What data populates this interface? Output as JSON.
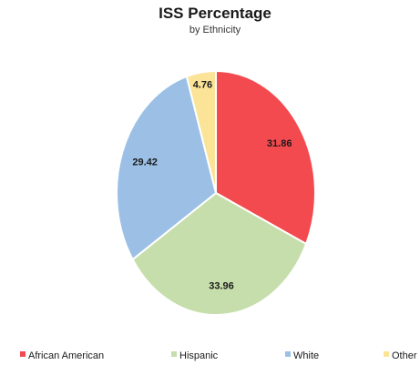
{
  "chart_data": {
    "type": "pie",
    "title": "ISS Percentage",
    "subtitle": "by Ethnicity",
    "categories": [
      "African American",
      "Hispanic",
      "White",
      "Other"
    ],
    "values": [
      31.86,
      33.96,
      29.42,
      4.76
    ],
    "data_labels": [
      "31.86",
      "33.96",
      "29.42",
      "4.76"
    ],
    "colors": [
      "#f24a4f",
      "#c6deab",
      "#9cc0e5",
      "#fbe397"
    ],
    "start_angle_deg": 0,
    "direction": "clockwise",
    "legend_position": "bottom"
  }
}
